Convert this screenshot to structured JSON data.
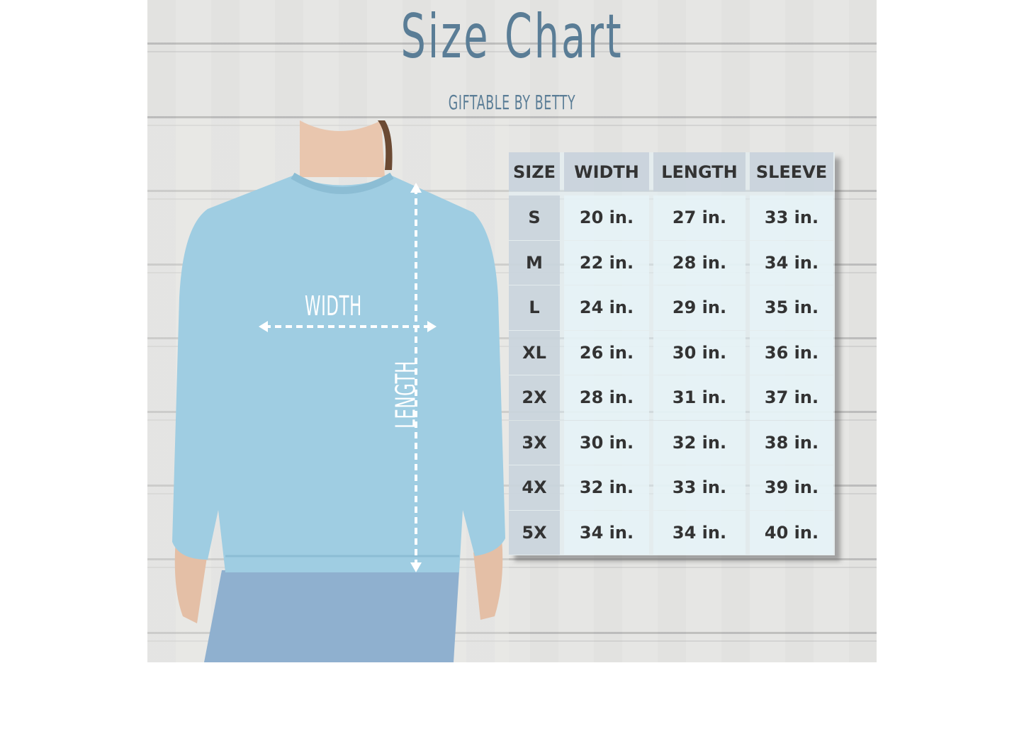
{
  "title": "Size Chart",
  "subtitle": "GIFTABLE BY BETTY",
  "measure_labels": {
    "width": "WIDTH",
    "length": "LENGTH"
  },
  "colors": {
    "title": "#5a7d96",
    "sweater": "#9fcde2",
    "table_text": "#333333"
  },
  "table": {
    "headers": [
      "SIZE",
      "WIDTH",
      "LENGTH",
      "SLEEVE"
    ],
    "rows": [
      [
        "S",
        "20 in.",
        "27 in.",
        "33 in."
      ],
      [
        "M",
        "22 in.",
        "28 in.",
        "34 in."
      ],
      [
        "L",
        "24 in.",
        "29 in.",
        "35 in."
      ],
      [
        "XL",
        "26 in.",
        "30 in.",
        "36 in."
      ],
      [
        "2X",
        "28 in.",
        "31 in.",
        "37 in."
      ],
      [
        "3X",
        "30 in.",
        "32 in.",
        "38 in."
      ],
      [
        "4X",
        "32 in.",
        "33 in.",
        "39 in."
      ],
      [
        "5X",
        "34 in.",
        "34 in.",
        "40 in."
      ]
    ]
  }
}
